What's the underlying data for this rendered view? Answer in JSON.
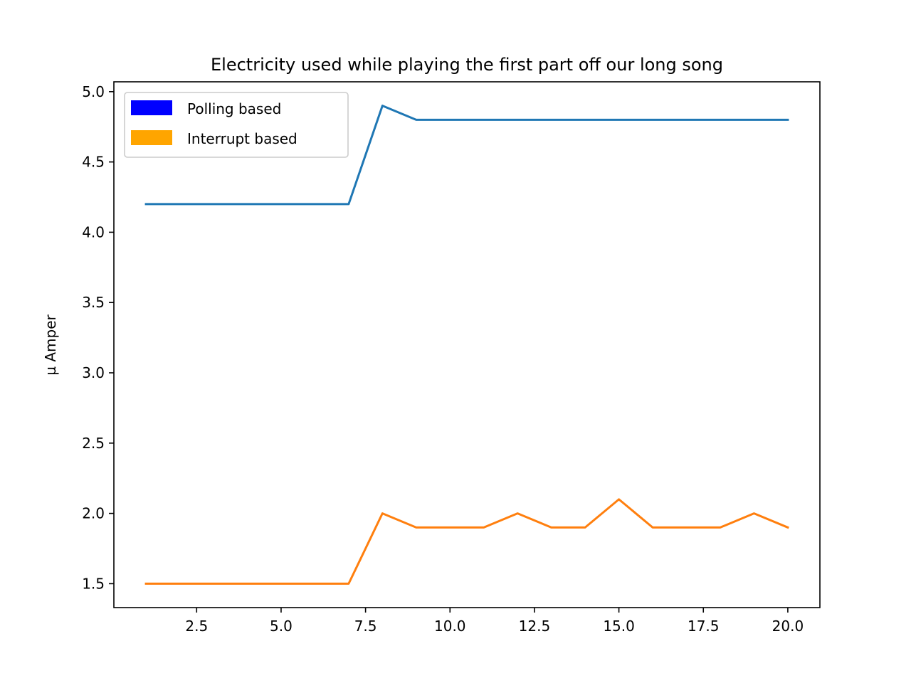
{
  "chart_data": {
    "type": "line",
    "title": "Electricity used while playing the first part off our long song",
    "xlabel": "",
    "ylabel": "µ Amper",
    "xlim": [
      0.05,
      20.95
    ],
    "ylim": [
      1.33,
      5.07
    ],
    "xticks": [
      2.5,
      5.0,
      7.5,
      10.0,
      12.5,
      15.0,
      17.5,
      20.0
    ],
    "xtick_labels": [
      "2.5",
      "5.0",
      "7.5",
      "10.0",
      "12.5",
      "15.0",
      "17.5",
      "20.0"
    ],
    "yticks": [
      1.5,
      2.0,
      2.5,
      3.0,
      3.5,
      4.0,
      4.5,
      5.0
    ],
    "ytick_labels": [
      "1.5",
      "2.0",
      "2.5",
      "3.0",
      "3.5",
      "4.0",
      "4.5",
      "5.0"
    ],
    "grid": false,
    "legend": {
      "position": "top-left",
      "entries": [
        {
          "label": "Polling based",
          "color": "#0000ff"
        },
        {
          "label": "Interrupt based",
          "color": "#ffa500"
        }
      ]
    },
    "x": [
      1,
      2,
      3,
      4,
      5,
      6,
      7,
      8,
      9,
      10,
      11,
      12,
      13,
      14,
      15,
      16,
      17,
      18,
      19,
      20
    ],
    "series": [
      {
        "color": "#1f77b4",
        "values": [
          4.2,
          4.2,
          4.2,
          4.2,
          4.2,
          4.2,
          4.2,
          4.9,
          4.8,
          4.8,
          4.8,
          4.8,
          4.8,
          4.8,
          4.8,
          4.8,
          4.8,
          4.8,
          4.8,
          4.8
        ]
      },
      {
        "color": "#ff7f0e",
        "values": [
          1.5,
          1.5,
          1.5,
          1.5,
          1.5,
          1.5,
          1.5,
          2.0,
          1.9,
          1.9,
          1.9,
          2.0,
          1.9,
          1.9,
          2.1,
          1.9,
          1.9,
          1.9,
          2.0,
          1.9
        ]
      }
    ]
  }
}
